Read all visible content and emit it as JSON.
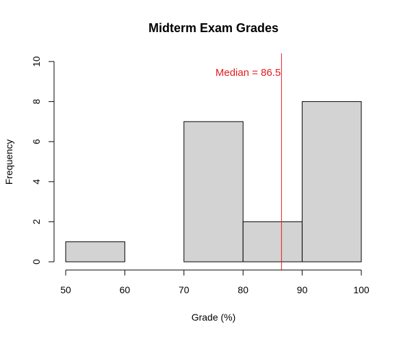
{
  "chart_data": {
    "type": "bar",
    "title": "Midterm Exam Grades",
    "xlabel": "Grade (%)",
    "ylabel": "Frequency",
    "bins": [
      {
        "from": 50,
        "to": 60,
        "count": 1
      },
      {
        "from": 60,
        "to": 70,
        "count": 0
      },
      {
        "from": 70,
        "to": 80,
        "count": 7
      },
      {
        "from": 80,
        "to": 90,
        "count": 2
      },
      {
        "from": 90,
        "to": 100,
        "count": 8
      }
    ],
    "xlim": [
      50,
      100
    ],
    "ylim": [
      0,
      10
    ],
    "x_ticks": [
      50,
      60,
      70,
      80,
      90,
      100
    ],
    "y_ticks": [
      0,
      2,
      4,
      6,
      8,
      10
    ],
    "bar_color": "#d3d3d3",
    "grid": false,
    "median": {
      "value": 86.5,
      "label": "Median = 86.5",
      "color": "#e31a1c"
    }
  }
}
